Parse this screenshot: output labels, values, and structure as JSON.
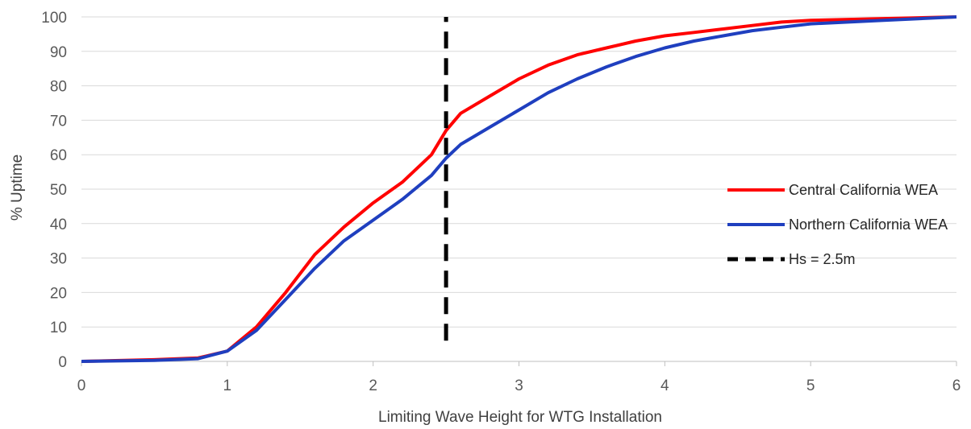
{
  "chart_data": {
    "type": "line",
    "title": "",
    "xlabel": "Limiting Wave Height for WTG Installation",
    "ylabel": "% Uptime",
    "xlim": [
      0,
      6
    ],
    "ylim": [
      0,
      100
    ],
    "xticks": [
      0,
      1,
      2,
      3,
      4,
      5,
      6
    ],
    "yticks": [
      0,
      10,
      20,
      30,
      40,
      50,
      60,
      70,
      80,
      90,
      100
    ],
    "grid": "horizontal",
    "legend_position": "right",
    "series": [
      {
        "name": "Central California WEA",
        "color": "#ff0000",
        "style": "solid",
        "x": [
          0,
          0.5,
          0.8,
          1.0,
          1.2,
          1.4,
          1.6,
          1.8,
          2.0,
          2.2,
          2.4,
          2.5,
          2.6,
          2.8,
          3.0,
          3.2,
          3.4,
          3.6,
          3.8,
          4.0,
          4.2,
          4.4,
          4.6,
          4.8,
          5.0,
          5.5,
          6.0
        ],
        "y": [
          0,
          0.5,
          1,
          3,
          10,
          20,
          31,
          39,
          46,
          52,
          60,
          67,
          72,
          77,
          82,
          86,
          89,
          91,
          93,
          94.5,
          95.5,
          96.5,
          97.5,
          98.5,
          99,
          99.5,
          100
        ]
      },
      {
        "name": "Northern California WEA",
        "color": "#1f3fbf",
        "style": "solid",
        "x": [
          0,
          0.5,
          0.8,
          1.0,
          1.2,
          1.4,
          1.6,
          1.8,
          2.0,
          2.2,
          2.4,
          2.5,
          2.6,
          2.8,
          3.0,
          3.2,
          3.4,
          3.6,
          3.8,
          4.0,
          4.2,
          4.4,
          4.6,
          4.8,
          5.0,
          5.5,
          6.0
        ],
        "y": [
          0,
          0.3,
          0.8,
          3,
          9,
          18,
          27,
          35,
          41,
          47,
          54,
          59,
          63,
          68,
          73,
          78,
          82,
          85.5,
          88.5,
          91,
          93,
          94.5,
          96,
          97,
          98,
          99,
          100
        ]
      },
      {
        "name": "Hs = 2.5m",
        "color": "#000000",
        "style": "dashed",
        "x": [
          2.5,
          2.5
        ],
        "y": [
          6,
          100
        ]
      }
    ]
  }
}
